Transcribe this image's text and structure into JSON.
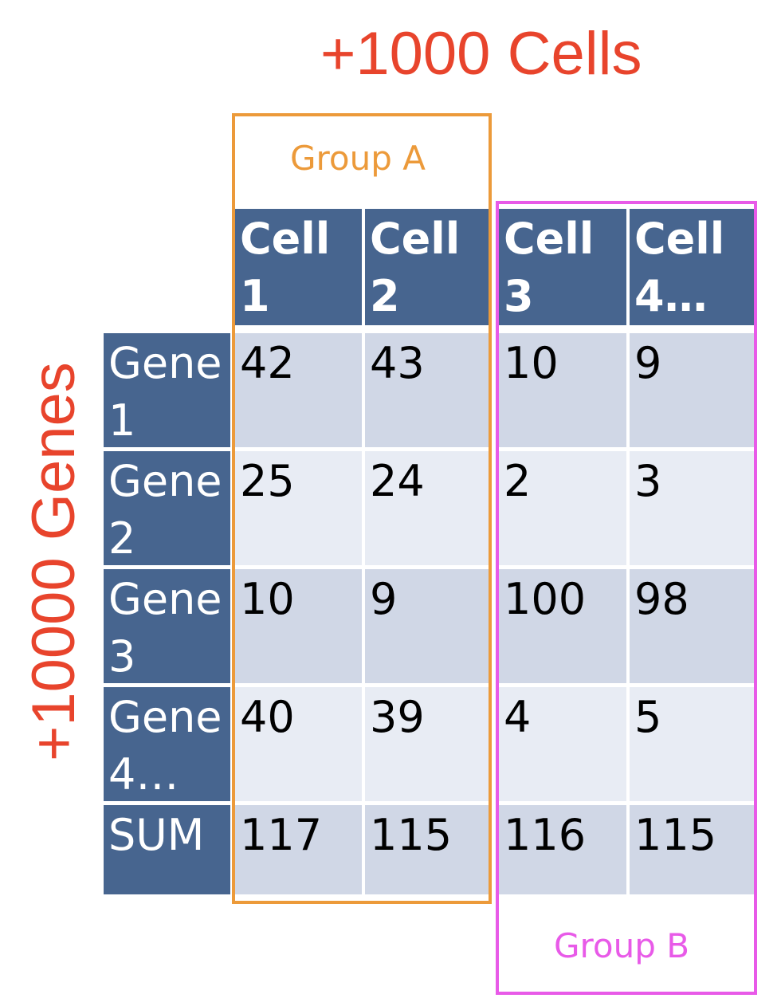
{
  "titles": {
    "cells": "+1000 Cells",
    "genes": "+10000 Genes"
  },
  "groups": {
    "a": {
      "label": "Group A",
      "color": "#ec9a3a"
    },
    "b": {
      "label": "Group B",
      "color": "#e85ae8"
    }
  },
  "colors": {
    "title": "#e8442c",
    "header_bg": "#47658f",
    "band_dark": "#d0d7e6",
    "band_light": "#e8ecf4"
  },
  "table": {
    "columns": [
      "Cell\n1",
      "Cell\n2",
      "Cell\n3",
      "Cell\n4…"
    ],
    "rows": [
      {
        "label": "Gene\n1",
        "values": [
          "42",
          "43",
          "10",
          "9"
        ]
      },
      {
        "label": "Gene\n2",
        "values": [
          "25",
          "24",
          "2",
          "3"
        ]
      },
      {
        "label": "Gene\n3",
        "values": [
          "10",
          "9",
          "100",
          "98"
        ]
      },
      {
        "label": "Gene\n4…",
        "values": [
          "40",
          "39",
          "4",
          "5"
        ]
      },
      {
        "label": "SUM",
        "values": [
          "117",
          "115",
          "116",
          "115"
        ]
      }
    ]
  }
}
